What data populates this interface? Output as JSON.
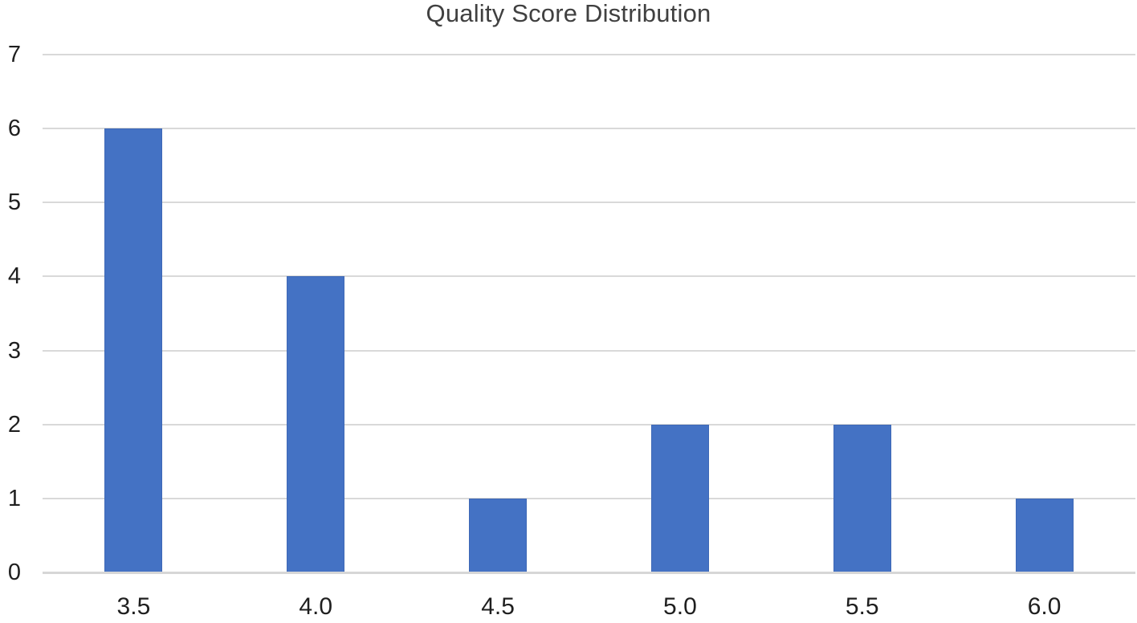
{
  "chart_data": {
    "type": "bar",
    "title": "Quality Score Distribution",
    "categories": [
      "3.5",
      "4.0",
      "4.5",
      "5.0",
      "5.5",
      "6.0"
    ],
    "values": [
      6,
      4,
      1,
      2,
      2,
      1
    ],
    "xlabel": "",
    "ylabel": "",
    "ylim": [
      0,
      7
    ],
    "yticks": [
      0,
      1,
      2,
      3,
      4,
      5,
      6,
      7
    ],
    "grid": true,
    "legend": false,
    "colors": {
      "bar_fill": "#4472C4",
      "bar_edge": "#3E68B6",
      "gridline": "#D9D9D9",
      "baseline": "#D6D6D6",
      "title_text": "#404040",
      "tick_text": "#1f1f1f",
      "background": "#FFFFFF"
    }
  }
}
